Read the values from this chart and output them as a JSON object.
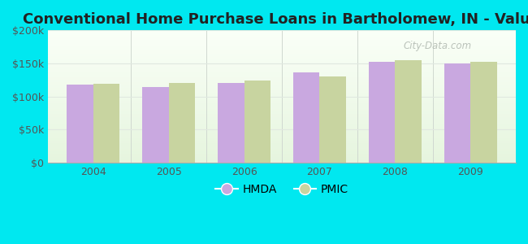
{
  "title": "Conventional Home Purchase Loans in Bartholomew, IN - Value",
  "categories": [
    "2004",
    "2005",
    "2006",
    "2007",
    "2008",
    "2009"
  ],
  "hmda_values": [
    118000,
    114000,
    120000,
    137000,
    152000,
    150000
  ],
  "pmic_values": [
    119000,
    121000,
    124000,
    130000,
    155000,
    153000
  ],
  "hmda_color": "#c9a8e0",
  "pmic_color": "#c8d4a0",
  "bar_width": 0.35,
  "ylim": [
    0,
    200000
  ],
  "yticks": [
    0,
    50000,
    100000,
    150000,
    200000
  ],
  "ytick_labels": [
    "$0",
    "$50k",
    "$100k",
    "$150k",
    "$200k"
  ],
  "background_color": "#00e8f0",
  "plot_bg_top": "#f5fffa",
  "plot_bg_bottom": "#e8f5e0",
  "title_fontsize": 13,
  "tick_fontsize": 9,
  "legend_fontsize": 10,
  "watermark_text": "City-Data.com",
  "watermark_color": "#b0b8b0",
  "sep_color": "#d0d8d0",
  "grid_color": "#e0e8e0"
}
